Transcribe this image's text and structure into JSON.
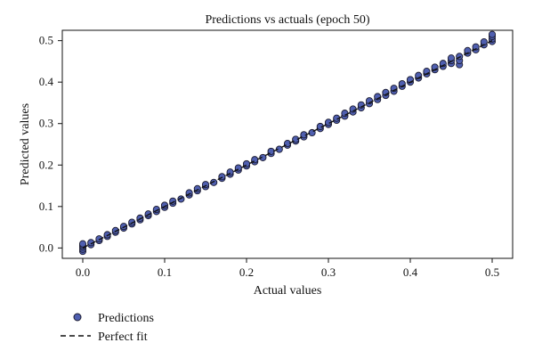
{
  "chart_data": {
    "type": "scatter",
    "title": "Predictions vs actuals (epoch 50)",
    "xlabel": "Actual values",
    "ylabel": "Predicted values",
    "xlim": [
      -0.025,
      0.525
    ],
    "ylim": [
      -0.025,
      0.525
    ],
    "xticks": [
      0.0,
      0.1,
      0.2,
      0.3,
      0.4,
      0.5
    ],
    "xtick_labels": [
      "0.0",
      "0.1",
      "0.2",
      "0.3",
      "0.4",
      "0.5"
    ],
    "yticks": [
      0.0,
      0.1,
      0.2,
      0.3,
      0.4,
      0.5
    ],
    "ytick_labels": [
      "0.0",
      "0.1",
      "0.2",
      "0.3",
      "0.4",
      "0.5"
    ],
    "grid": false,
    "legend_position": "below",
    "series": [
      {
        "name": "Predictions",
        "kind": "scatter",
        "color": "#4f5fb0",
        "edge_color": "#1a1a2e",
        "points": [
          [
            0.0,
            -0.008
          ],
          [
            0.0,
            -0.003
          ],
          [
            0.0,
            0.002
          ],
          [
            0.0,
            0.006
          ],
          [
            0.0,
            0.01
          ],
          [
            0.01,
            0.008
          ],
          [
            0.01,
            0.013
          ],
          [
            0.02,
            0.018
          ],
          [
            0.02,
            0.022
          ],
          [
            0.03,
            0.028
          ],
          [
            0.03,
            0.032
          ],
          [
            0.04,
            0.038
          ],
          [
            0.04,
            0.042
          ],
          [
            0.05,
            0.048
          ],
          [
            0.05,
            0.052
          ],
          [
            0.06,
            0.058
          ],
          [
            0.06,
            0.062
          ],
          [
            0.07,
            0.068
          ],
          [
            0.07,
            0.072
          ],
          [
            0.08,
            0.078
          ],
          [
            0.08,
            0.082
          ],
          [
            0.09,
            0.088
          ],
          [
            0.09,
            0.093
          ],
          [
            0.1,
            0.098
          ],
          [
            0.1,
            0.103
          ],
          [
            0.11,
            0.108
          ],
          [
            0.11,
            0.113
          ],
          [
            0.12,
            0.118
          ],
          [
            0.13,
            0.128
          ],
          [
            0.13,
            0.133
          ],
          [
            0.14,
            0.138
          ],
          [
            0.14,
            0.143
          ],
          [
            0.15,
            0.148
          ],
          [
            0.15,
            0.153
          ],
          [
            0.16,
            0.158
          ],
          [
            0.17,
            0.168
          ],
          [
            0.17,
            0.172
          ],
          [
            0.18,
            0.178
          ],
          [
            0.18,
            0.183
          ],
          [
            0.19,
            0.188
          ],
          [
            0.19,
            0.193
          ],
          [
            0.2,
            0.198
          ],
          [
            0.2,
            0.203
          ],
          [
            0.21,
            0.208
          ],
          [
            0.21,
            0.213
          ],
          [
            0.22,
            0.218
          ],
          [
            0.23,
            0.228
          ],
          [
            0.23,
            0.233
          ],
          [
            0.24,
            0.238
          ],
          [
            0.25,
            0.248
          ],
          [
            0.25,
            0.252
          ],
          [
            0.26,
            0.258
          ],
          [
            0.26,
            0.262
          ],
          [
            0.27,
            0.268
          ],
          [
            0.27,
            0.273
          ],
          [
            0.28,
            0.278
          ],
          [
            0.29,
            0.288
          ],
          [
            0.29,
            0.293
          ],
          [
            0.3,
            0.298
          ],
          [
            0.3,
            0.303
          ],
          [
            0.31,
            0.308
          ],
          [
            0.31,
            0.313
          ],
          [
            0.32,
            0.318
          ],
          [
            0.32,
            0.325
          ],
          [
            0.33,
            0.328
          ],
          [
            0.33,
            0.335
          ],
          [
            0.34,
            0.338
          ],
          [
            0.34,
            0.345
          ],
          [
            0.35,
            0.348
          ],
          [
            0.35,
            0.355
          ],
          [
            0.36,
            0.358
          ],
          [
            0.36,
            0.365
          ],
          [
            0.37,
            0.368
          ],
          [
            0.37,
            0.375
          ],
          [
            0.38,
            0.378
          ],
          [
            0.38,
            0.385
          ],
          [
            0.39,
            0.39
          ],
          [
            0.39,
            0.396
          ],
          [
            0.4,
            0.4
          ],
          [
            0.4,
            0.406
          ],
          [
            0.41,
            0.41
          ],
          [
            0.41,
            0.416
          ],
          [
            0.42,
            0.42
          ],
          [
            0.42,
            0.426
          ],
          [
            0.43,
            0.43
          ],
          [
            0.43,
            0.436
          ],
          [
            0.44,
            0.438
          ],
          [
            0.44,
            0.445
          ],
          [
            0.45,
            0.445
          ],
          [
            0.45,
            0.452
          ],
          [
            0.45,
            0.458
          ],
          [
            0.46,
            0.442
          ],
          [
            0.46,
            0.452
          ],
          [
            0.46,
            0.462
          ],
          [
            0.47,
            0.47
          ],
          [
            0.47,
            0.476
          ],
          [
            0.48,
            0.478
          ],
          [
            0.48,
            0.485
          ],
          [
            0.49,
            0.49
          ],
          [
            0.49,
            0.497
          ],
          [
            0.5,
            0.498
          ],
          [
            0.5,
            0.504
          ],
          [
            0.5,
            0.51
          ],
          [
            0.5,
            0.515
          ]
        ]
      },
      {
        "name": "Perfect fit",
        "kind": "line",
        "color": "#111111",
        "dash": "dashed",
        "points": [
          [
            0.0,
            0.0
          ],
          [
            0.5,
            0.5
          ]
        ]
      }
    ]
  }
}
